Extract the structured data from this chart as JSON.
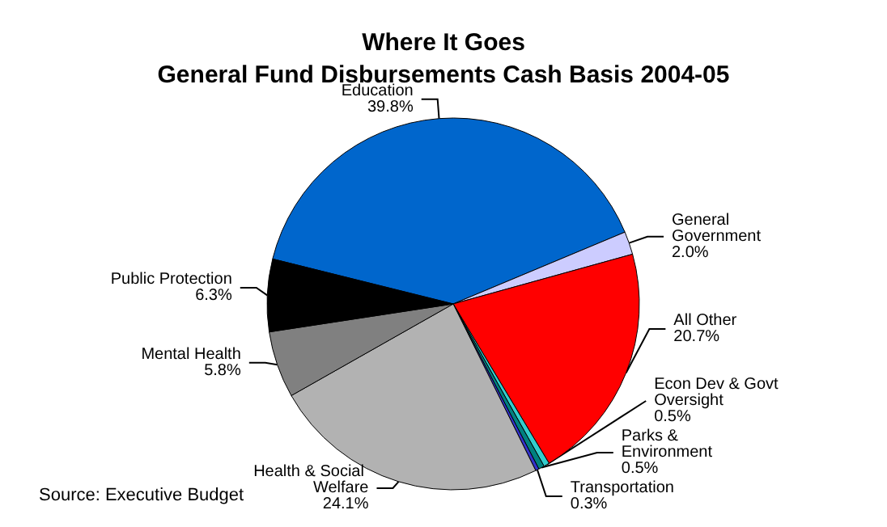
{
  "chart_data": {
    "type": "pie",
    "title": "Where It Goes",
    "subtitle": "General Fund Disbursements Cash Basis 2004-05",
    "categories": [
      "Education",
      "General Government",
      "All Other",
      "Econ Dev & Govt Oversight",
      "Parks & Environment",
      "Transportation",
      "Health & Social Welfare",
      "Mental Health",
      "Public Protection"
    ],
    "values": [
      39.8,
      2.0,
      20.7,
      0.5,
      0.5,
      0.3,
      24.1,
      5.8,
      6.3
    ],
    "value_labels": [
      "39.8%",
      "2.0%",
      "20.7%",
      "0.5%",
      "0.5%",
      "0.3%",
      "24.1%",
      "5.8%",
      "6.3%"
    ],
    "colors": [
      "#0066cc",
      "#ccccff",
      "#ff0000",
      "#33cccc",
      "#008080",
      "#3333cc",
      "#b2b2b2",
      "#808080",
      "#000000"
    ],
    "annotations": [
      "Source: Executive Budget"
    ],
    "legend": false
  }
}
